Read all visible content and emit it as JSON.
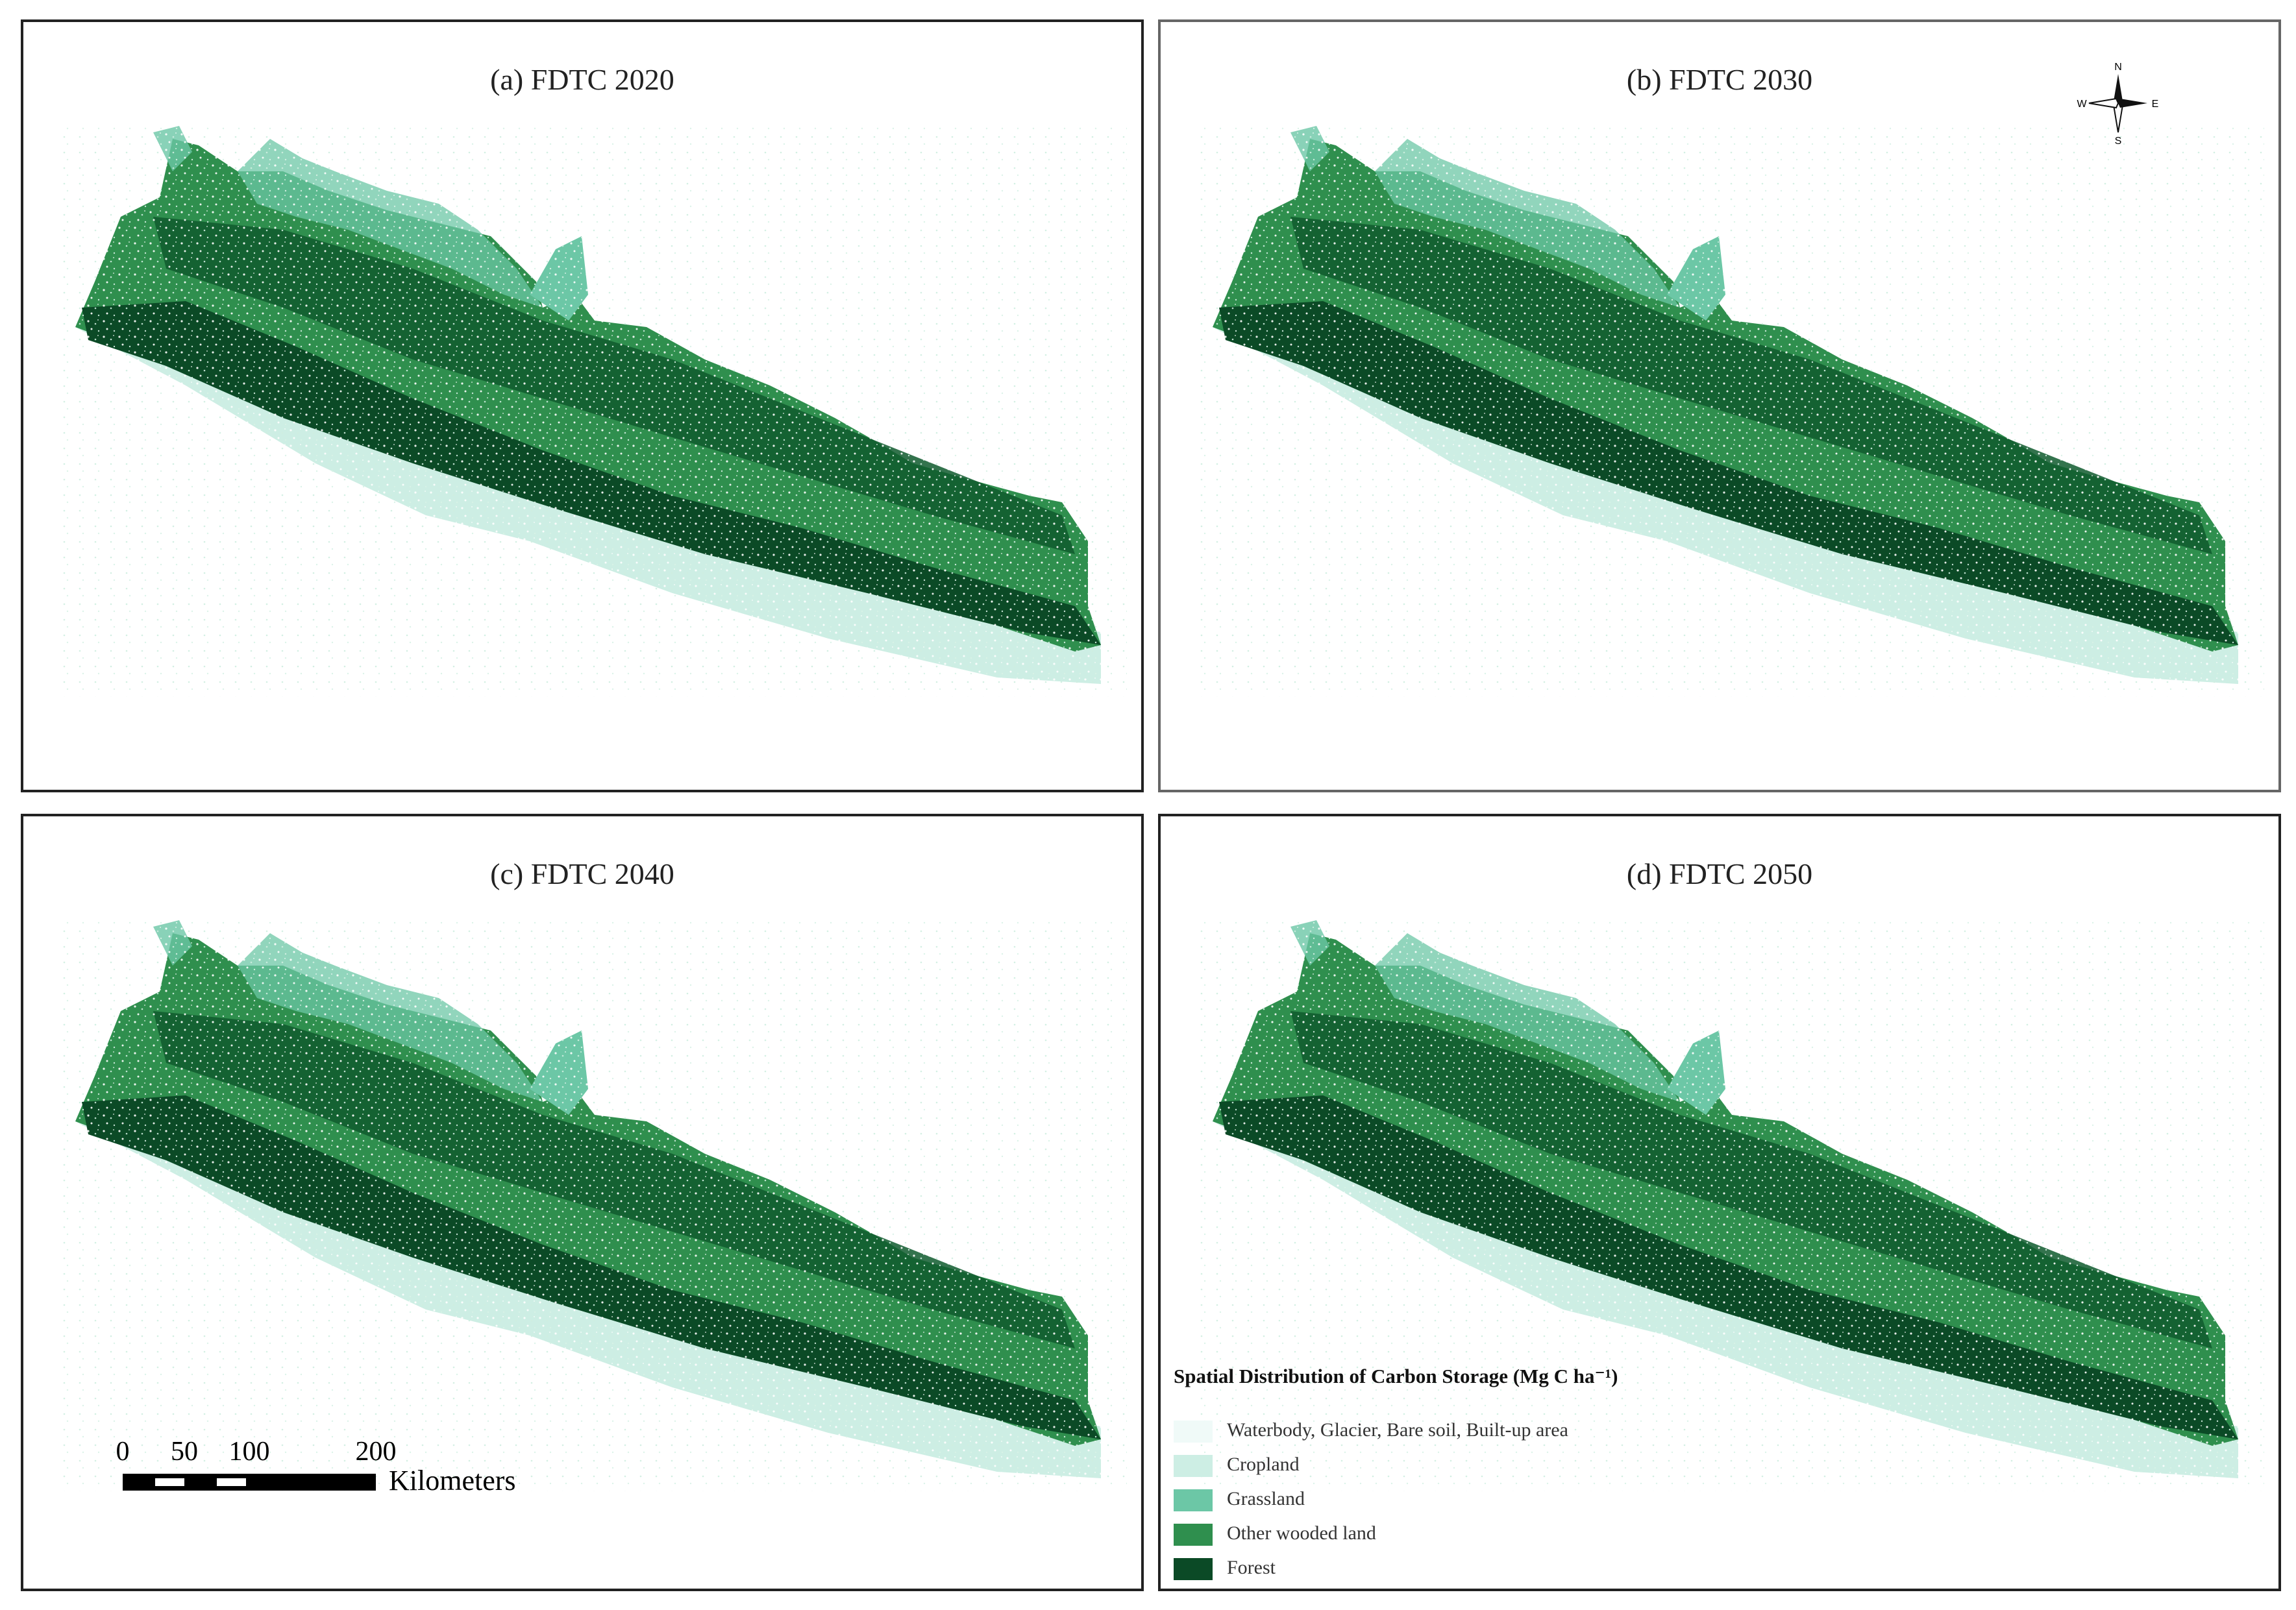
{
  "panels": [
    {
      "id": "a",
      "title": "(a) FDTC 2020"
    },
    {
      "id": "b",
      "title": "(b) FDTC 2030"
    },
    {
      "id": "c",
      "title": "(c) FDTC 2040"
    },
    {
      "id": "d",
      "title": "(d) FDTC 2050"
    }
  ],
  "compass": {
    "n": "N",
    "s": "S",
    "e": "E",
    "w": "W"
  },
  "scalebar": {
    "ticks": [
      "0",
      "50",
      "100",
      "200"
    ],
    "unit": "Kilometers"
  },
  "legend": {
    "title": "Spatial Distribution of Carbon Storage (Mg C ha⁻¹)",
    "items": [
      {
        "label": "Waterbody, Glacier, Bare soil, Built-up area",
        "color": "#f0faf8"
      },
      {
        "label": "Cropland",
        "color": "#cdeee4"
      },
      {
        "label": "Grassland",
        "color": "#6cc7a6"
      },
      {
        "label": "Other wooded land",
        "color": "#2f8f4e"
      },
      {
        "label": "Forest",
        "color": "#0b4a26"
      }
    ]
  }
}
